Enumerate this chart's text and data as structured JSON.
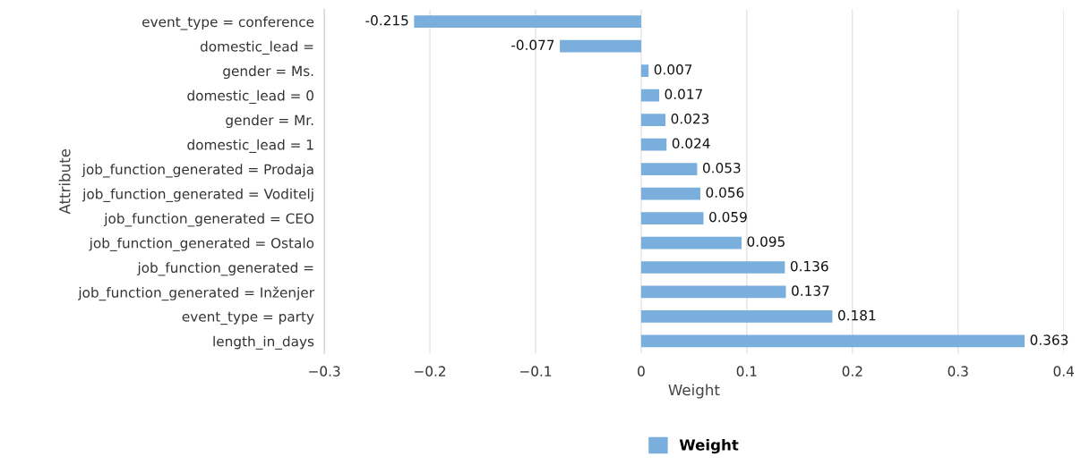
{
  "chart_data": {
    "type": "bar",
    "orientation": "horizontal",
    "xlabel": "Weight",
    "ylabel": "Attribute",
    "categories": [
      "event_type = conference",
      "domestic_lead =",
      "gender = Ms.",
      "domestic_lead = 0",
      "gender = Mr.",
      "domestic_lead = 1",
      "job_function_generated = Prodaja",
      "job_function_generated = Voditelj",
      "job_function_generated = CEO",
      "job_function_generated = Ostalo",
      "job_function_generated =",
      "job_function_generated = Inženjer",
      "event_type = party",
      "length_in_days"
    ],
    "series": [
      {
        "name": "Weight",
        "color": "#7aaedc",
        "values": [
          -0.215,
          -0.077,
          0.007,
          0.017,
          0.023,
          0.024,
          0.053,
          0.056,
          0.059,
          0.095,
          0.136,
          0.137,
          0.181,
          0.363
        ]
      }
    ],
    "data_labels": true,
    "xlim": [
      -0.3,
      0.4
    ],
    "xticks": [
      {
        "value": -0.3,
        "label": "−0.3"
      },
      {
        "value": -0.2,
        "label": "−0.2"
      },
      {
        "value": -0.1,
        "label": "−0.1"
      },
      0,
      0.1,
      0.2,
      0.3,
      0.4
    ],
    "grid": "x",
    "legend": "bottom"
  }
}
